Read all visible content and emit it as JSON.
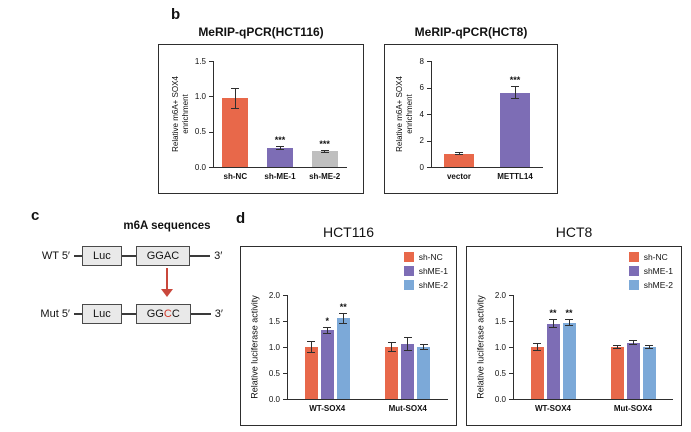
{
  "colors": {
    "red": "#E8684A",
    "purple": "#7D6DB5",
    "gray": "#BFBFBF",
    "blue": "#7CA9D8",
    "axis": "#2e2e2e",
    "arrow_red": "#C9473B"
  },
  "panels": {
    "b": {
      "label": "b"
    },
    "c": {
      "label": "c",
      "title": "m6A sequences",
      "wt": {
        "prefix": "WT 5′",
        "luc": "Luc",
        "seq": "GGAC",
        "suffix": "3′"
      },
      "mut": {
        "prefix": "Mut 5′",
        "luc": "Luc",
        "seq_pre": "GG",
        "seq_red": "C",
        "seq_post": "C",
        "suffix": "3′"
      }
    },
    "d": {
      "label": "d"
    }
  },
  "chart_data": [
    {
      "type": "bar",
      "title": "MeRIP-qPCR(HCT116)",
      "ylabel": "Relative m6A+ SOX4\nenrichment",
      "categories": [
        "sh-NC",
        "sh-ME-1",
        "sh-ME-2"
      ],
      "values": [
        0.97,
        0.27,
        0.22
      ],
      "errors": [
        0.15,
        0.03,
        0.02
      ],
      "bar_colors": [
        "red",
        "purple",
        "gray"
      ],
      "significance": [
        "",
        "***",
        "***"
      ],
      "ylim": [
        0,
        1.5
      ],
      "yticks": [
        "0.0",
        "0.5",
        "1.0",
        "1.5"
      ],
      "grid": false
    },
    {
      "type": "bar",
      "title": "MeRIP-qPCR(HCT8)",
      "ylabel": "Relative m6A+ SOX4\nenrichment",
      "categories": [
        "vector",
        "METTL14"
      ],
      "values": [
        1.0,
        5.6
      ],
      "errors": [
        0.1,
        0.5
      ],
      "bar_colors": [
        "red",
        "purple"
      ],
      "significance": [
        "",
        "***"
      ],
      "ylim": [
        0,
        8
      ],
      "yticks": [
        "0",
        "2",
        "4",
        "6",
        "8"
      ],
      "grid": false
    },
    {
      "type": "bar",
      "title": "HCT116",
      "ylabel": "Relative luciferase activity",
      "categories": [
        "WT-SOX4",
        "Mut-SOX4"
      ],
      "series": [
        {
          "name": "sh-NC",
          "color": "red",
          "values": [
            1.0,
            1.0
          ],
          "errors": [
            0.12,
            0.1
          ],
          "significance": [
            "",
            ""
          ]
        },
        {
          "name": "shME-1",
          "color": "purple",
          "values": [
            1.32,
            1.06
          ],
          "errors": [
            0.07,
            0.13
          ],
          "significance": [
            "*",
            ""
          ]
        },
        {
          "name": "shME-2",
          "color": "blue",
          "values": [
            1.55,
            1.0
          ],
          "errors": [
            0.1,
            0.06
          ],
          "significance": [
            "**",
            ""
          ]
        }
      ],
      "ylim": [
        0,
        2.0
      ],
      "yticks": [
        "0.0",
        "0.5",
        "1.0",
        "1.5",
        "2.0"
      ],
      "legend_position": "top-right",
      "grid": false
    },
    {
      "type": "bar",
      "title": "HCT8",
      "ylabel": "Relative luciferase activity",
      "categories": [
        "WT-SOX4",
        "Mut-SOX4"
      ],
      "series": [
        {
          "name": "sh-NC",
          "color": "red",
          "values": [
            1.0,
            1.0
          ],
          "errors": [
            0.07,
            0.04
          ],
          "significance": [
            "",
            ""
          ]
        },
        {
          "name": "shME-1",
          "color": "purple",
          "values": [
            1.45,
            1.08
          ],
          "errors": [
            0.08,
            0.05
          ],
          "significance": [
            "**",
            ""
          ]
        },
        {
          "name": "shME-2",
          "color": "blue",
          "values": [
            1.47,
            1.0
          ],
          "errors": [
            0.06,
            0.04
          ],
          "significance": [
            "**",
            ""
          ]
        }
      ],
      "ylim": [
        0,
        2.0
      ],
      "yticks": [
        "0.0",
        "0.5",
        "1.0",
        "1.5",
        "2.0"
      ],
      "legend_position": "top-right",
      "grid": false
    }
  ]
}
